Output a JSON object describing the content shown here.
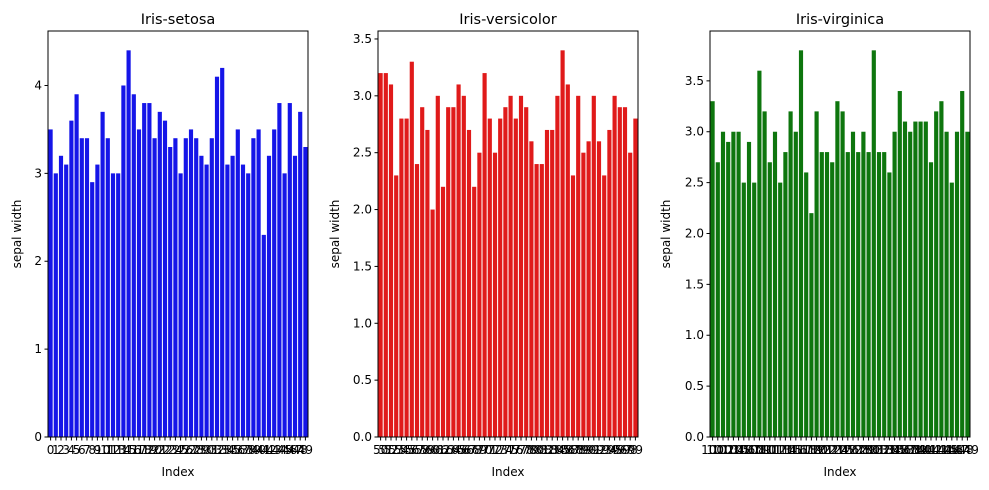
{
  "chart_data": [
    {
      "type": "bar",
      "title": "Iris-setosa",
      "xlabel": "Index",
      "ylabel": "sepal width",
      "color": "#1515e8",
      "ylim": [
        0,
        4.62
      ],
      "yticks": [
        0,
        1,
        2,
        3,
        4
      ],
      "ytick_labels": [
        "0",
        "1",
        "2",
        "3",
        "4"
      ],
      "categories": [
        "0",
        "1",
        "2",
        "3",
        "4",
        "5",
        "6",
        "7",
        "8",
        "9",
        "10",
        "11",
        "12",
        "13",
        "14",
        "15",
        "16",
        "17",
        "18",
        "19",
        "20",
        "21",
        "22",
        "23",
        "24",
        "25",
        "26",
        "27",
        "28",
        "29",
        "30",
        "31",
        "32",
        "33",
        "34",
        "35",
        "36",
        "37",
        "38",
        "39",
        "40",
        "41",
        "42",
        "43",
        "44",
        "45",
        "46",
        "47",
        "48",
        "49"
      ],
      "values": [
        3.5,
        3.0,
        3.2,
        3.1,
        3.6,
        3.9,
        3.4,
        3.4,
        2.9,
        3.1,
        3.7,
        3.4,
        3.0,
        3.0,
        4.0,
        4.4,
        3.9,
        3.5,
        3.8,
        3.8,
        3.4,
        3.7,
        3.6,
        3.3,
        3.4,
        3.0,
        3.4,
        3.5,
        3.4,
        3.2,
        3.1,
        3.4,
        4.1,
        4.2,
        3.1,
        3.2,
        3.5,
        3.1,
        3.0,
        3.4,
        3.5,
        2.3,
        3.2,
        3.5,
        3.8,
        3.0,
        3.8,
        3.2,
        3.7,
        3.3
      ]
    },
    {
      "type": "bar",
      "title": "Iris-versicolor",
      "xlabel": "Index",
      "ylabel": "sepal width",
      "color": "#e01a1a",
      "ylim": [
        0,
        3.57
      ],
      "yticks": [
        0,
        0.5,
        1.0,
        1.5,
        2.0,
        2.5,
        3.0,
        3.5
      ],
      "ytick_labels": [
        "0.0",
        "0.5",
        "1.0",
        "1.5",
        "2.0",
        "2.5",
        "3.0",
        "3.5"
      ],
      "categories": [
        "50",
        "51",
        "52",
        "53",
        "54",
        "55",
        "56",
        "57",
        "58",
        "59",
        "60",
        "61",
        "62",
        "63",
        "64",
        "65",
        "66",
        "67",
        "68",
        "69",
        "70",
        "71",
        "72",
        "73",
        "74",
        "75",
        "76",
        "77",
        "78",
        "79",
        "80",
        "81",
        "82",
        "83",
        "84",
        "85",
        "86",
        "87",
        "88",
        "89",
        "90",
        "91",
        "92",
        "93",
        "94",
        "95",
        "96",
        "97",
        "98",
        "99"
      ],
      "values": [
        3.2,
        3.2,
        3.1,
        2.3,
        2.8,
        2.8,
        3.3,
        2.4,
        2.9,
        2.7,
        2.0,
        3.0,
        2.2,
        2.9,
        2.9,
        3.1,
        3.0,
        2.7,
        2.2,
        2.5,
        3.2,
        2.8,
        2.5,
        2.8,
        2.9,
        3.0,
        2.8,
        3.0,
        2.9,
        2.6,
        2.4,
        2.4,
        2.7,
        2.7,
        3.0,
        3.4,
        3.1,
        2.3,
        3.0,
        2.5,
        2.6,
        3.0,
        2.6,
        2.3,
        2.7,
        3.0,
        2.9,
        2.9,
        2.5,
        2.8
      ]
    },
    {
      "type": "bar",
      "title": "Iris-virginica",
      "xlabel": "Index",
      "ylabel": "sepal width",
      "color": "#0e760e",
      "ylim": [
        0,
        3.99
      ],
      "yticks": [
        0,
        0.5,
        1.0,
        1.5,
        2.0,
        2.5,
        3.0,
        3.5
      ],
      "ytick_labels": [
        "0.0",
        "0.5",
        "1.0",
        "1.5",
        "2.0",
        "2.5",
        "3.0",
        "3.5"
      ],
      "categories": [
        "100",
        "101",
        "102",
        "103",
        "104",
        "105",
        "106",
        "107",
        "108",
        "109",
        "110",
        "111",
        "112",
        "113",
        "114",
        "115",
        "116",
        "117",
        "118",
        "119",
        "120",
        "121",
        "122",
        "123",
        "124",
        "125",
        "126",
        "127",
        "128",
        "129",
        "130",
        "131",
        "132",
        "133",
        "134",
        "135",
        "136",
        "137",
        "138",
        "139",
        "140",
        "141",
        "142",
        "143",
        "144",
        "145",
        "146",
        "147",
        "148",
        "149"
      ],
      "values": [
        3.3,
        2.7,
        3.0,
        2.9,
        3.0,
        3.0,
        2.5,
        2.9,
        2.5,
        3.6,
        3.2,
        2.7,
        3.0,
        2.5,
        2.8,
        3.2,
        3.0,
        3.8,
        2.6,
        2.2,
        3.2,
        2.8,
        2.8,
        2.7,
        3.3,
        3.2,
        2.8,
        3.0,
        2.8,
        3.0,
        2.8,
        3.8,
        2.8,
        2.8,
        2.6,
        3.0,
        3.4,
        3.1,
        3.0,
        3.1,
        3.1,
        3.1,
        2.7,
        3.2,
        3.3,
        3.0,
        2.5,
        3.0,
        3.4,
        3.0
      ]
    }
  ]
}
